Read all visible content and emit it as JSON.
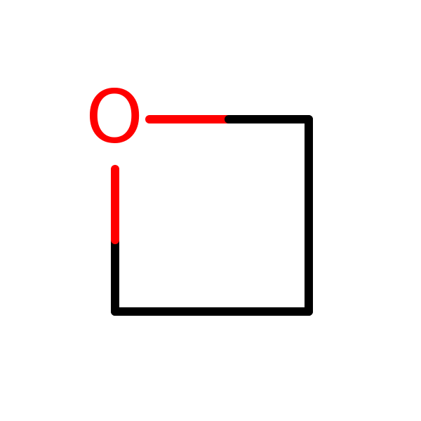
{
  "molecule": {
    "atoms": [
      {
        "id": "o1",
        "element": "O",
        "label": "O",
        "color": "#ff0000"
      },
      {
        "id": "c2",
        "element": "C",
        "label": "",
        "color": "#000000"
      },
      {
        "id": "c3",
        "element": "C",
        "label": "",
        "color": "#000000"
      },
      {
        "id": "c4",
        "element": "C",
        "label": "",
        "color": "#000000"
      }
    ],
    "bonds": [
      {
        "from": "o1",
        "to": "c2",
        "order": 1
      },
      {
        "from": "c2",
        "to": "c3",
        "order": 1
      },
      {
        "from": "c3",
        "to": "c4",
        "order": 1
      },
      {
        "from": "c4",
        "to": "o1",
        "order": 1
      }
    ],
    "colors": {
      "oxygen": "#ff0000",
      "carbon": "#000000",
      "background": "#ffffff"
    }
  }
}
